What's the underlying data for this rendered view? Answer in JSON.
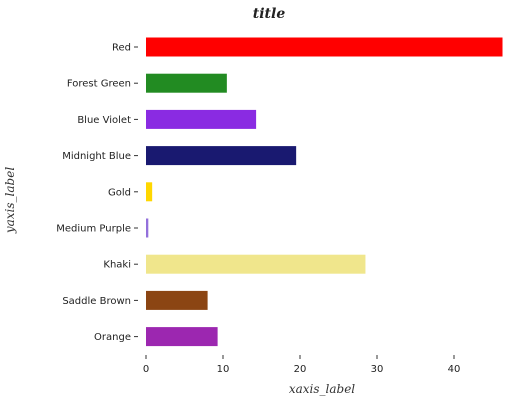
{
  "chart_data": {
    "type": "bar",
    "orientation": "horizontal",
    "title": "title",
    "xlabel": "xaxis_label",
    "ylabel": "yaxis_label",
    "categories": [
      "Orange",
      "Saddle Brown",
      "Khaki",
      "Medium Purple",
      "Gold",
      "Midnight Blue",
      "Blue Violet",
      "Forest Green",
      "Red"
    ],
    "values": [
      9.3,
      8.0,
      28.5,
      0.3,
      0.8,
      19.5,
      14.3,
      10.5,
      46.3
    ],
    "colors": [
      "#9c27b0",
      "#8b4513",
      "#f0e68c",
      "#9370db",
      "#ffd700",
      "#191970",
      "#8a2be2",
      "#228b22",
      "#ff0000"
    ],
    "xlim": [
      0,
      47
    ],
    "xticks": [
      "0",
      "10",
      "20",
      "30",
      "40"
    ],
    "grid": false,
    "legend": "none"
  }
}
